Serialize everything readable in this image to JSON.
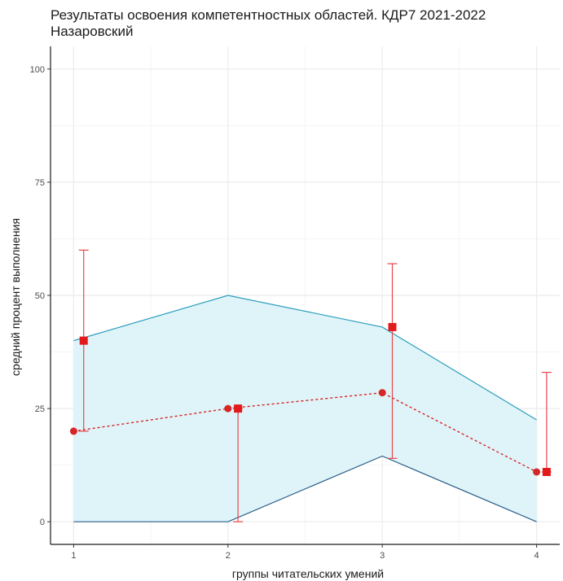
{
  "chart_data": {
    "type": "line",
    "title": "Результаты освоения компетентностных областей. КДР7 2021-2022\nНазаровский",
    "xlabel": "группы читательских умений",
    "ylabel": "средний процент выполнения",
    "x": [
      1,
      2,
      3,
      4
    ],
    "x_tick_labels": [
      "1",
      "2",
      "3",
      "4"
    ],
    "ylim": [
      0,
      100
    ],
    "y_ticks": [
      0,
      25,
      50,
      75,
      100
    ],
    "y_tick_labels": [
      "0",
      "25",
      "50",
      "75",
      "100"
    ],
    "grid": true,
    "legend": "none",
    "band": {
      "upper": [
        40,
        50,
        43,
        22.5
      ],
      "lower": [
        0,
        0,
        14.5,
        0
      ],
      "fill_color": "#dff4f9",
      "upper_line_color": "#2a9dbd",
      "lower_line_color": "#2b5f8a"
    },
    "series": [
      {
        "values": [
          20,
          25,
          28.5,
          11
        ],
        "style": "dotted-line-circles",
        "color": "#d62728"
      },
      {
        "values": [
          40,
          25,
          43,
          11
        ],
        "style": "squares",
        "color": "#e31a1c"
      }
    ],
    "error_bars": {
      "lower": [
        20,
        0,
        14,
        11
      ],
      "upper": [
        60,
        25,
        57,
        33
      ],
      "color": "#e8474a"
    }
  }
}
